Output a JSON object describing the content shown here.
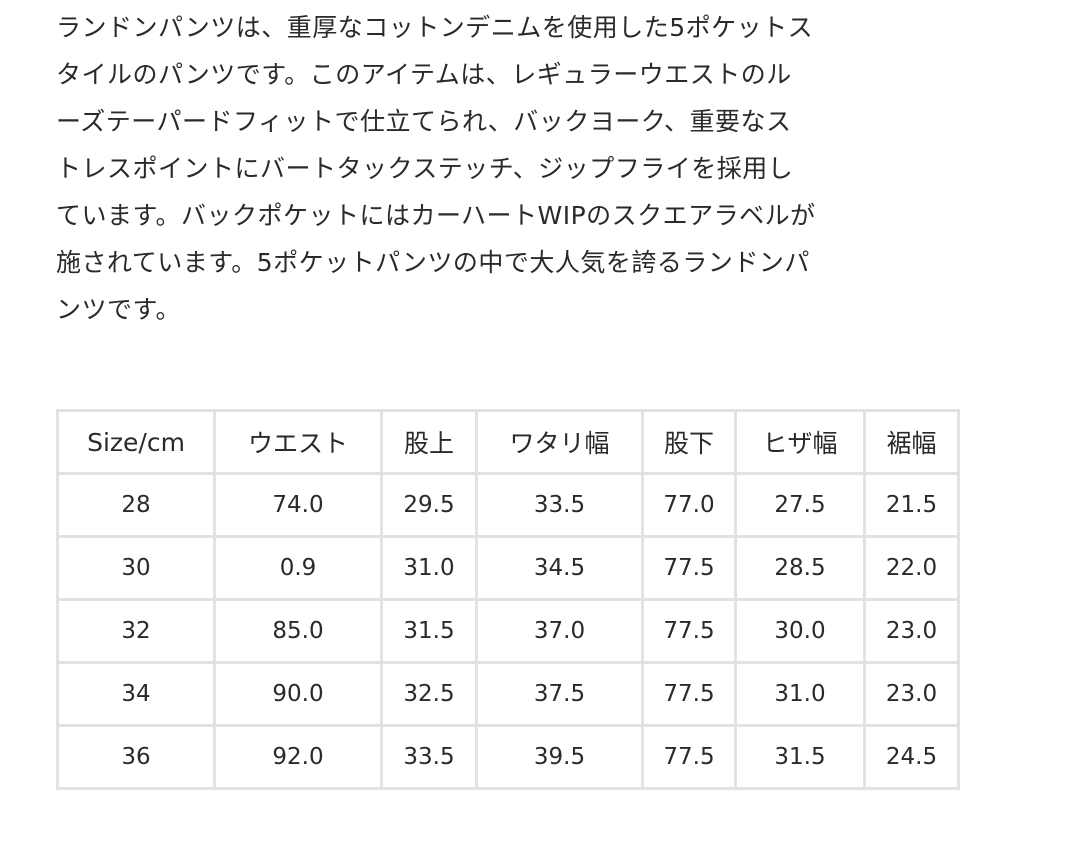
{
  "description": {
    "lines": [
      "ランドンパンツは、重厚なコットンデニムを使用した5ポケットス",
      "タイルのパンツです。このアイテムは、レギュラーウエストのル",
      "ーズテーパードフィットで仕立てられ、バックヨーク、重要なス",
      "トレスポイントにバートタックステッチ、ジップフライを採用し",
      "ています。バックポケットにはカーハートWIPのスクエアラベルが",
      "施されています。5ポケットパンツの中で大人気を誇るランドンパ",
      "ンツです。"
    ]
  },
  "size_table": {
    "headers": [
      "Size/cm",
      "ウエスト",
      "股上",
      "ワタリ幅",
      "股下",
      "ヒザ幅",
      "裾幅"
    ],
    "rows": [
      [
        "28",
        "74.0",
        "29.5",
        "33.5",
        "77.0",
        "27.5",
        "21.5"
      ],
      [
        "30",
        "0.9",
        "31.0",
        "34.5",
        "77.5",
        "28.5",
        "22.0"
      ],
      [
        "32",
        "85.0",
        "31.5",
        "37.0",
        "77.5",
        "30.0",
        "23.0"
      ],
      [
        "34",
        "90.0",
        "32.5",
        "37.5",
        "77.5",
        "31.0",
        "23.0"
      ],
      [
        "36",
        "92.0",
        "33.5",
        "39.5",
        "77.5",
        "31.5",
        "24.5"
      ]
    ]
  }
}
